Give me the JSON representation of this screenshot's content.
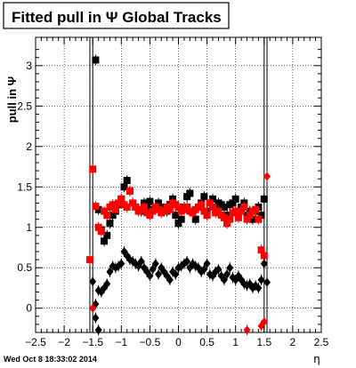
{
  "timestamp": "Wed Oct  8 18:33:02 2014",
  "chart_data": {
    "type": "scatter",
    "title": "Fitted pull in Ψ   Global Tracks",
    "xlabel": "η",
    "ylabel": "pull in Ψ",
    "xlim": [
      -2.5,
      2.5
    ],
    "ylim": [
      -0.3,
      3.35
    ],
    "grid": true,
    "x_ticks": [
      -2.5,
      -2,
      -1.5,
      -1,
      -0.5,
      0,
      0.5,
      1,
      1.5,
      2,
      2.5
    ],
    "x_tick_labels": [
      "−2.5",
      "−2",
      "−1.5",
      "−1",
      "−0.5",
      "0",
      "0.5",
      "1",
      "1.5",
      "2",
      "2.5"
    ],
    "y_ticks": [
      0,
      0.5,
      1,
      1.5,
      2,
      2.5,
      3
    ],
    "y_tick_labels": [
      "0",
      "0.5",
      "1",
      "1.5",
      "2",
      "2.5",
      "3"
    ],
    "vertical_lines": [
      -1.55,
      -1.5,
      1.5,
      1.55
    ],
    "series": [
      {
        "color": "#000000",
        "marker": "square",
        "x": [
          -1.45,
          -1.4,
          -1.35,
          -1.3,
          -1.25,
          -1.2,
          -1.15,
          -1.1,
          -1.05,
          -1.0,
          -0.95,
          -0.9,
          -0.85,
          -0.8,
          -0.75,
          -0.7,
          -0.65,
          -0.6,
          -0.55,
          -0.5,
          -0.45,
          -0.4,
          -0.35,
          -0.3,
          -0.25,
          -0.2,
          -0.15,
          -0.1,
          -0.05,
          0.0,
          0.05,
          0.1,
          0.15,
          0.2,
          0.25,
          0.3,
          0.35,
          0.4,
          0.45,
          0.5,
          0.55,
          0.6,
          0.65,
          0.7,
          0.75,
          0.8,
          0.85,
          0.9,
          0.95,
          1.0,
          1.05,
          1.1,
          1.15,
          1.2,
          1.25,
          1.3,
          1.35,
          1.4,
          1.45,
          1.5
        ],
        "y": [
          3.07,
          1.22,
          0.97,
          0.83,
          0.9,
          1.05,
          1.15,
          1.2,
          1.28,
          1.35,
          1.5,
          1.58,
          1.45,
          1.3,
          1.25,
          1.22,
          1.2,
          1.3,
          1.25,
          1.32,
          1.22,
          1.25,
          1.3,
          1.25,
          1.22,
          1.2,
          1.28,
          1.35,
          1.15,
          1.05,
          1.1,
          1.25,
          1.38,
          1.42,
          1.18,
          1.1,
          1.25,
          1.3,
          1.38,
          1.2,
          1.3,
          1.35,
          1.22,
          1.3,
          1.28,
          1.25,
          1.15,
          1.28,
          1.3,
          1.35,
          1.2,
          1.25,
          1.3,
          1.15,
          1.2,
          1.1,
          1.2,
          1.25,
          1.15,
          1.35
        ]
      },
      {
        "color": "#ff0000",
        "marker": "square",
        "x": [
          -1.55,
          -1.5,
          -1.45,
          -1.4,
          -1.35,
          -1.3,
          -1.25,
          -1.2,
          -1.15,
          -1.1,
          -1.05,
          -1.0,
          -0.95,
          -0.9,
          -0.85,
          -0.8,
          -0.75,
          -0.7,
          -0.65,
          -0.6,
          -0.55,
          -0.5,
          -0.45,
          -0.4,
          -0.35,
          -0.3,
          -0.25,
          -0.2,
          -0.15,
          -0.1,
          -0.05,
          0.0,
          0.05,
          0.1,
          0.15,
          0.2,
          0.25,
          0.3,
          0.35,
          0.4,
          0.45,
          0.5,
          0.55,
          0.6,
          0.65,
          0.7,
          0.75,
          0.8,
          0.85,
          0.9,
          0.95,
          1.0,
          1.05,
          1.1,
          1.15,
          1.2,
          1.25,
          1.3,
          1.35,
          1.4,
          1.45,
          1.5
        ],
        "y": [
          0.6,
          1.72,
          1.26,
          1.0,
          0.95,
          1.2,
          1.15,
          1.25,
          1.28,
          1.22,
          1.3,
          1.35,
          1.28,
          1.25,
          1.45,
          1.3,
          1.25,
          1.2,
          1.22,
          1.25,
          1.18,
          1.15,
          1.2,
          1.25,
          1.22,
          1.18,
          1.2,
          1.25,
          1.22,
          1.3,
          1.28,
          1.25,
          1.2,
          1.22,
          1.25,
          1.2,
          1.18,
          1.22,
          1.25,
          1.28,
          1.2,
          1.15,
          1.3,
          1.25,
          1.18,
          1.2,
          1.15,
          1.12,
          1.05,
          1.1,
          1.18,
          1.2,
          1.12,
          1.2,
          1.25,
          1.1,
          1.15,
          1.2,
          1.22,
          1.1,
          0.72,
          0.65
        ]
      },
      {
        "color": "#000000",
        "marker": "diamond",
        "x": [
          -1.5,
          -1.45,
          -1.4,
          -1.35,
          -1.3,
          -1.25,
          -1.2,
          -1.15,
          -1.1,
          -1.05,
          -1.0,
          -0.95,
          -0.9,
          -0.85,
          -0.8,
          -0.75,
          -0.7,
          -0.65,
          -0.6,
          -0.55,
          -0.5,
          -0.45,
          -0.4,
          -0.35,
          -0.3,
          -0.25,
          -0.2,
          -0.15,
          -0.1,
          -0.05,
          0.0,
          0.05,
          0.1,
          0.15,
          0.2,
          0.25,
          0.3,
          0.35,
          0.4,
          0.45,
          0.5,
          0.55,
          0.6,
          0.65,
          0.7,
          0.75,
          0.8,
          0.85,
          0.9,
          0.95,
          1.0,
          1.05,
          1.1,
          1.15,
          1.2,
          1.25,
          1.3,
          1.35,
          1.4,
          1.45,
          1.5,
          1.55
        ],
        "y": [
          0.33,
          0.05,
          0.22,
          0.2,
          0.25,
          0.3,
          0.45,
          0.52,
          0.5,
          0.52,
          0.55,
          0.7,
          0.65,
          0.6,
          0.58,
          0.55,
          0.52,
          0.58,
          0.5,
          0.45,
          0.4,
          0.48,
          0.55,
          0.42,
          0.5,
          0.45,
          0.4,
          0.35,
          0.45,
          0.42,
          0.5,
          0.52,
          0.55,
          0.58,
          0.5,
          0.55,
          0.52,
          0.5,
          0.45,
          0.48,
          0.55,
          0.42,
          0.4,
          0.45,
          0.48,
          0.4,
          0.35,
          0.42,
          0.5,
          0.38,
          0.35,
          0.4,
          0.35,
          0.3,
          0.28,
          0.3,
          0.25,
          0.28,
          0.25,
          0.35,
          0.55,
          0.32
        ]
      },
      {
        "color": "#ff0000",
        "marker": "diamond",
        "x": [
          -1.5,
          1.2,
          1.45,
          1.5,
          1.55
        ],
        "y": [
          0.0,
          -0.27,
          -0.22,
          -0.17,
          1.63
        ]
      },
      {
        "color": "#000000",
        "marker": "diamond",
        "x": [
          -1.45,
          -1.4
        ],
        "y": [
          -0.12,
          -0.27
        ]
      }
    ]
  }
}
